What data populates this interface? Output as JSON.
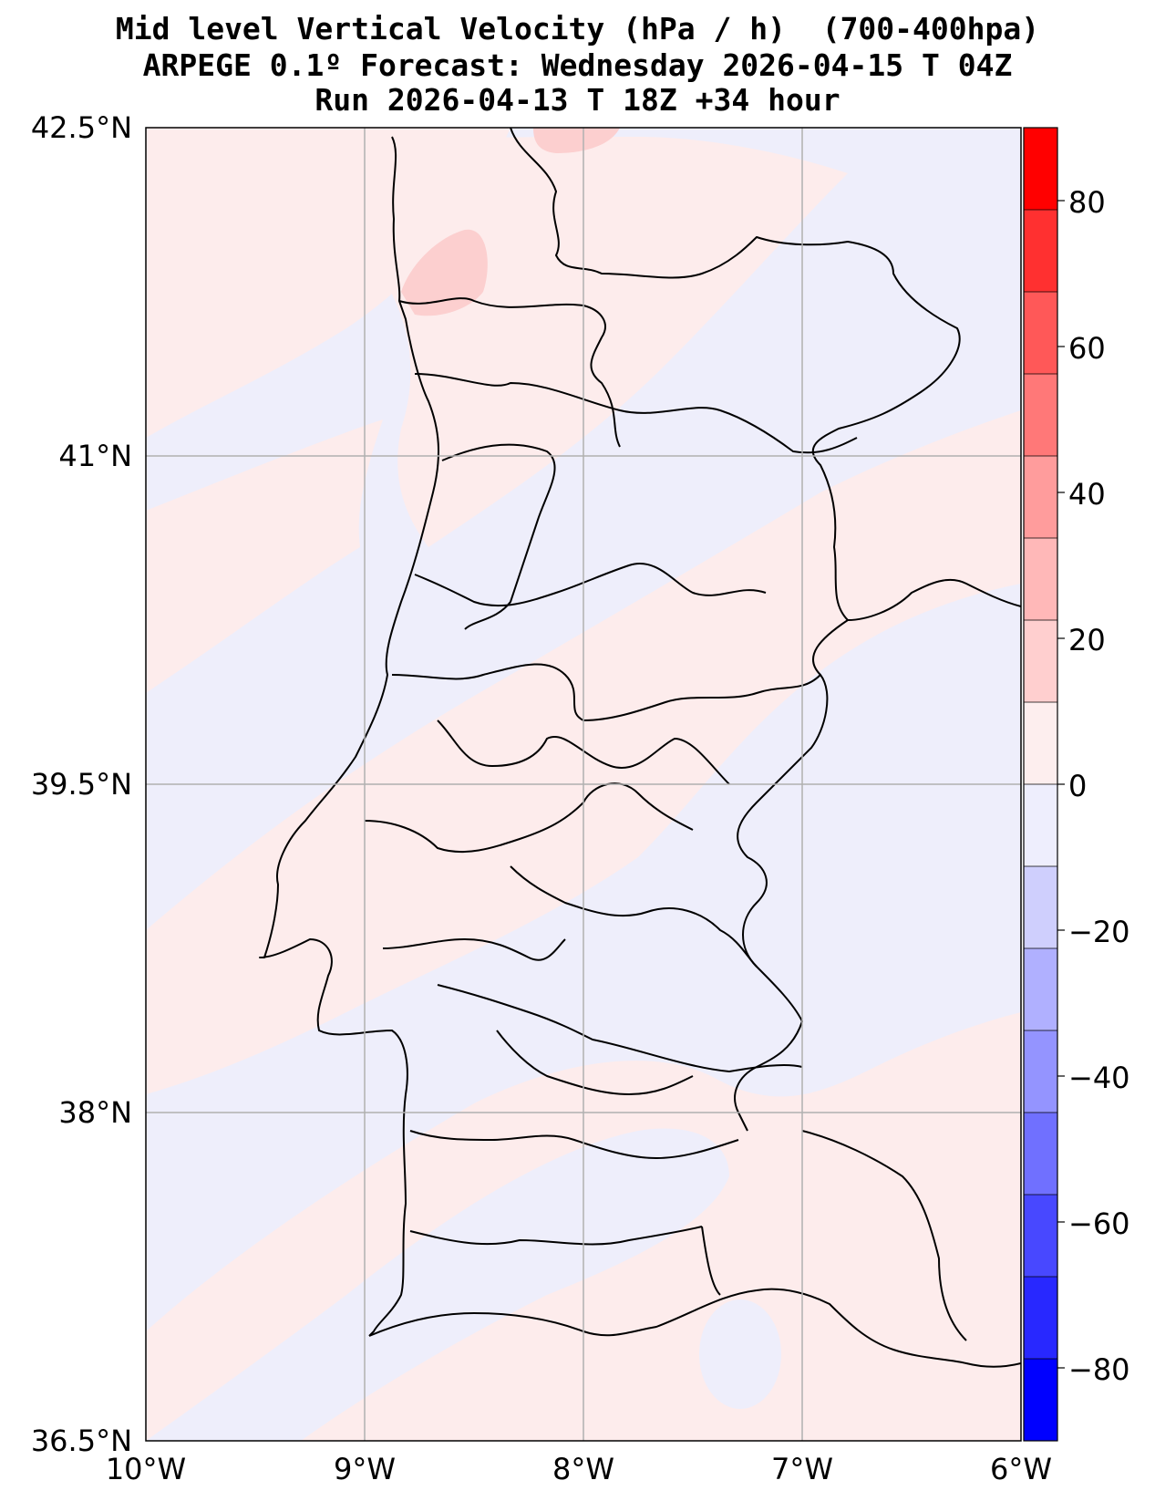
{
  "header": {
    "line1": "Mid level Vertical Velocity (hPa / h)  (700-400hpa)",
    "line2": "ARPEGE 0.1º Forecast: Wednesday 2026-04-15 T 04Z",
    "line3": "Run 2026-04-13 T 18Z +34 hour"
  },
  "map": {
    "lon_ticks": [
      "10°W",
      "9°W",
      "8°W",
      "7°W",
      "6°W"
    ],
    "lat_ticks": [
      "42.5°N",
      "41°N",
      "39.5°N",
      "38°N",
      "36.5°N"
    ],
    "extent": {
      "lon": [
        -10,
        -6
      ],
      "lat": [
        36.5,
        42.5
      ]
    },
    "gridlines": true
  },
  "colorbar": {
    "ticks": [
      "80",
      "60",
      "40",
      "20",
      "0",
      "−20",
      "−40",
      "−60",
      "−80"
    ],
    "range": [
      -90,
      90
    ],
    "level_step": 10,
    "colors_top_to_bottom": [
      "#ff0000",
      "#ff3030",
      "#ff5858",
      "#ff7878",
      "#ff9c9c",
      "#ffb8b8",
      "#ffcfcf",
      "#fdeeee",
      "#eeeefd",
      "#cfcffd",
      "#b0b0ff",
      "#9494ff",
      "#7070ff",
      "#4848ff",
      "#2828ff",
      "#0000ff"
    ]
  },
  "colors": {
    "light_pos": "#fdecec",
    "pos_20": "#fccfcf",
    "light_neg": "#eeeefb",
    "grid": "#b0b0b0",
    "border": "#000000"
  }
}
